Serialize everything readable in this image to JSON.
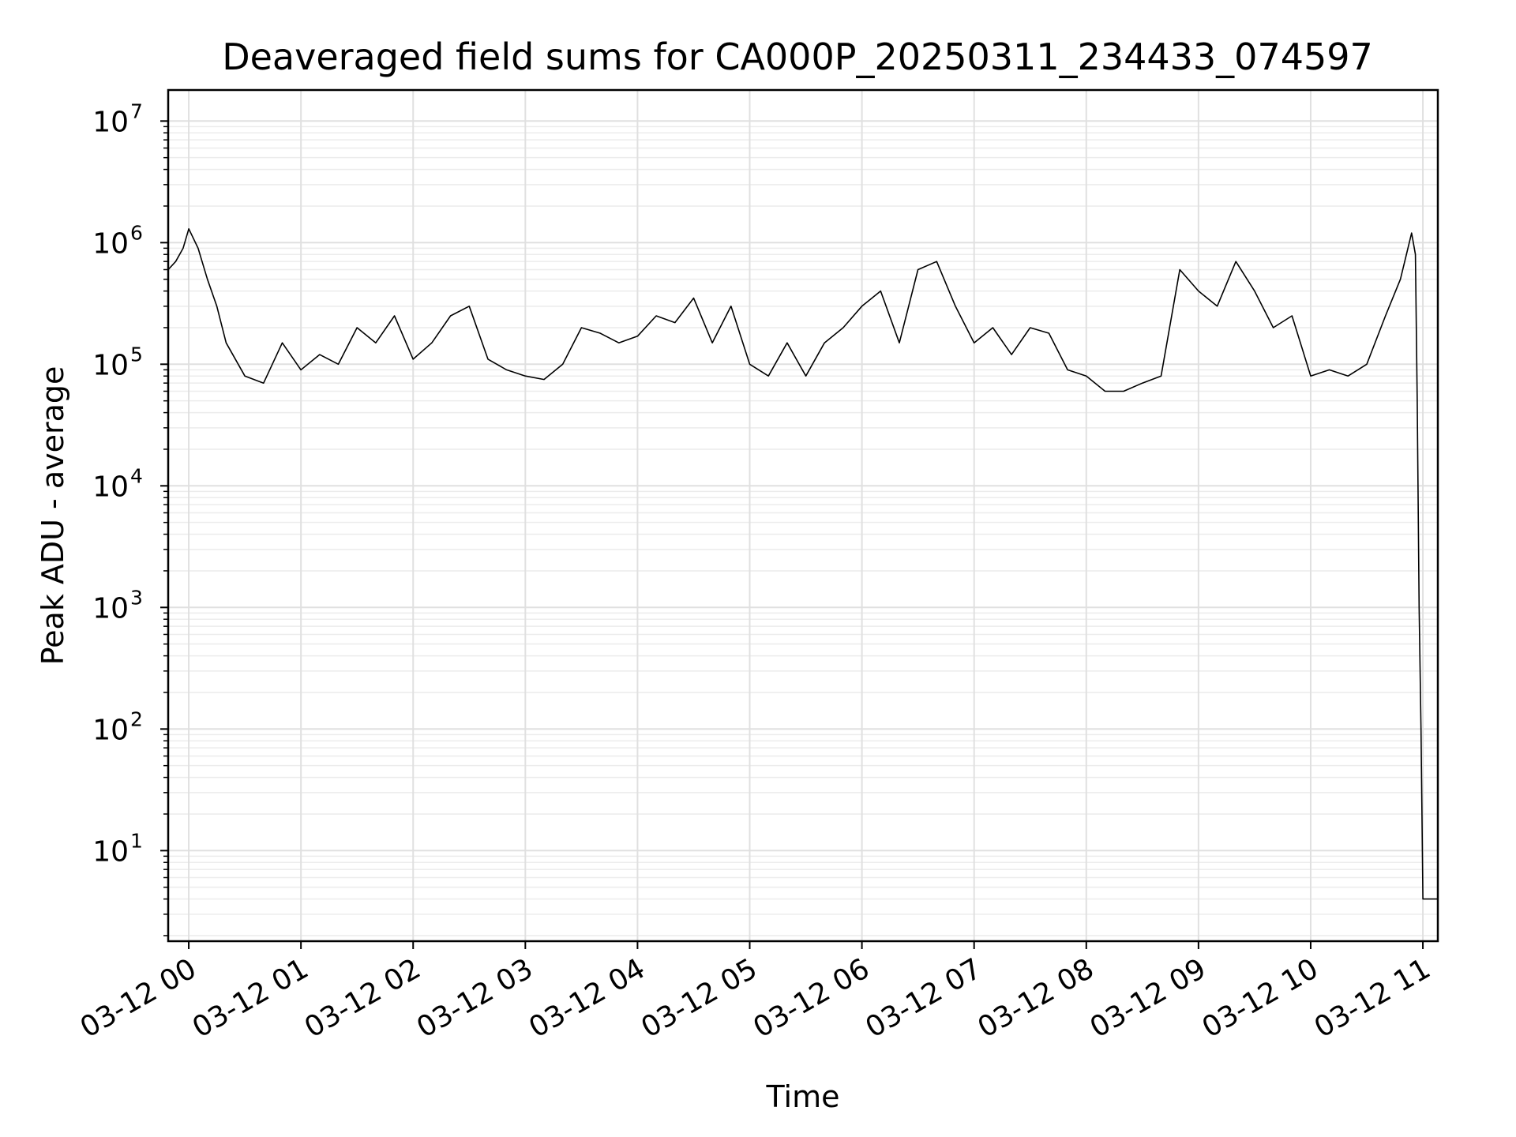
{
  "chart_data": {
    "type": "line",
    "title": "Deaveraged field sums for CA000P_20250311_234433_074597",
    "xlabel": "Time",
    "ylabel": "Peak ADU - average",
    "yscale": "log",
    "ylim": [
      1.8,
      18000000
    ],
    "xlim": [
      "2025-03-11T23:49:00",
      "2025-03-12T11:08:00"
    ],
    "grid": true,
    "line_color": "#000000",
    "x_tick_labels": [
      "03-12 00",
      "03-12 01",
      "03-12 02",
      "03-12 03",
      "03-12 04",
      "03-12 05",
      "03-12 06",
      "03-12 07",
      "03-12 08",
      "03-12 09",
      "03-12 10",
      "03-12 11"
    ],
    "x_ticks": [
      "2025-03-12T00:00:00",
      "2025-03-12T01:00:00",
      "2025-03-12T02:00:00",
      "2025-03-12T03:00:00",
      "2025-03-12T04:00:00",
      "2025-03-12T05:00:00",
      "2025-03-12T06:00:00",
      "2025-03-12T07:00:00",
      "2025-03-12T08:00:00",
      "2025-03-12T09:00:00",
      "2025-03-12T10:00:00",
      "2025-03-12T11:00:00"
    ],
    "y_ticks": [
      10,
      100,
      1000,
      10000,
      100000,
      1000000,
      10000000
    ],
    "y_tick_labels": [
      {
        "base": "10",
        "exp": "1"
      },
      {
        "base": "10",
        "exp": "2"
      },
      {
        "base": "10",
        "exp": "3"
      },
      {
        "base": "10",
        "exp": "4"
      },
      {
        "base": "10",
        "exp": "5"
      },
      {
        "base": "10",
        "exp": "6"
      },
      {
        "base": "10",
        "exp": "7"
      }
    ],
    "series": [
      {
        "x": [
          "2025-03-11T23:49:00",
          "2025-03-11T23:53:00",
          "2025-03-11T23:57:00",
          "2025-03-12T00:00:00",
          "2025-03-12T00:05:00",
          "2025-03-12T00:10:00",
          "2025-03-12T00:15:00",
          "2025-03-12T00:20:00",
          "2025-03-12T00:30:00",
          "2025-03-12T00:40:00",
          "2025-03-12T00:50:00",
          "2025-03-12T01:00:00",
          "2025-03-12T01:10:00",
          "2025-03-12T01:20:00",
          "2025-03-12T01:30:00",
          "2025-03-12T01:40:00",
          "2025-03-12T01:50:00",
          "2025-03-12T02:00:00",
          "2025-03-12T02:10:00",
          "2025-03-12T02:20:00",
          "2025-03-12T02:30:00",
          "2025-03-12T02:40:00",
          "2025-03-12T02:50:00",
          "2025-03-12T03:00:00",
          "2025-03-12T03:10:00",
          "2025-03-12T03:20:00",
          "2025-03-12T03:30:00",
          "2025-03-12T03:40:00",
          "2025-03-12T03:50:00",
          "2025-03-12T04:00:00",
          "2025-03-12T04:10:00",
          "2025-03-12T04:20:00",
          "2025-03-12T04:30:00",
          "2025-03-12T04:40:00",
          "2025-03-12T04:50:00",
          "2025-03-12T05:00:00",
          "2025-03-12T05:10:00",
          "2025-03-12T05:20:00",
          "2025-03-12T05:30:00",
          "2025-03-12T05:40:00",
          "2025-03-12T05:50:00",
          "2025-03-12T06:00:00",
          "2025-03-12T06:10:00",
          "2025-03-12T06:20:00",
          "2025-03-12T06:30:00",
          "2025-03-12T06:40:00",
          "2025-03-12T06:50:00",
          "2025-03-12T07:00:00",
          "2025-03-12T07:10:00",
          "2025-03-12T07:20:00",
          "2025-03-12T07:30:00",
          "2025-03-12T07:40:00",
          "2025-03-12T07:50:00",
          "2025-03-12T08:00:00",
          "2025-03-12T08:10:00",
          "2025-03-12T08:20:00",
          "2025-03-12T08:30:00",
          "2025-03-12T08:40:00",
          "2025-03-12T08:50:00",
          "2025-03-12T09:00:00",
          "2025-03-12T09:10:00",
          "2025-03-12T09:20:00",
          "2025-03-12T09:30:00",
          "2025-03-12T09:40:00",
          "2025-03-12T09:50:00",
          "2025-03-12T10:00:00",
          "2025-03-12T10:10:00",
          "2025-03-12T10:20:00",
          "2025-03-12T10:30:00",
          "2025-03-12T10:40:00",
          "2025-03-12T10:48:00",
          "2025-03-12T10:54:00",
          "2025-03-12T10:56:00",
          "2025-03-12T10:57:00",
          "2025-03-12T10:58:00",
          "2025-03-12T10:59:00",
          "2025-03-12T11:00:00",
          "2025-03-12T11:04:00",
          "2025-03-12T11:08:00"
        ],
        "y": [
          600000,
          700000,
          900000,
          1300000,
          900000,
          500000,
          300000,
          150000,
          80000,
          70000,
          150000,
          90000,
          120000,
          100000,
          200000,
          150000,
          250000,
          110000,
          150000,
          250000,
          300000,
          110000,
          90000,
          80000,
          75000,
          100000,
          200000,
          180000,
          150000,
          170000,
          250000,
          220000,
          350000,
          150000,
          300000,
          100000,
          80000,
          150000,
          80000,
          150000,
          200000,
          300000,
          400000,
          150000,
          600000,
          700000,
          300000,
          150000,
          200000,
          120000,
          200000,
          180000,
          90000,
          80000,
          60000,
          60000,
          70000,
          80000,
          600000,
          400000,
          300000,
          700000,
          400000,
          200000,
          250000,
          80000,
          90000,
          80000,
          100000,
          250000,
          500000,
          1200000,
          800000,
          50000,
          1000,
          100,
          4,
          4,
          4
        ]
      }
    ]
  }
}
